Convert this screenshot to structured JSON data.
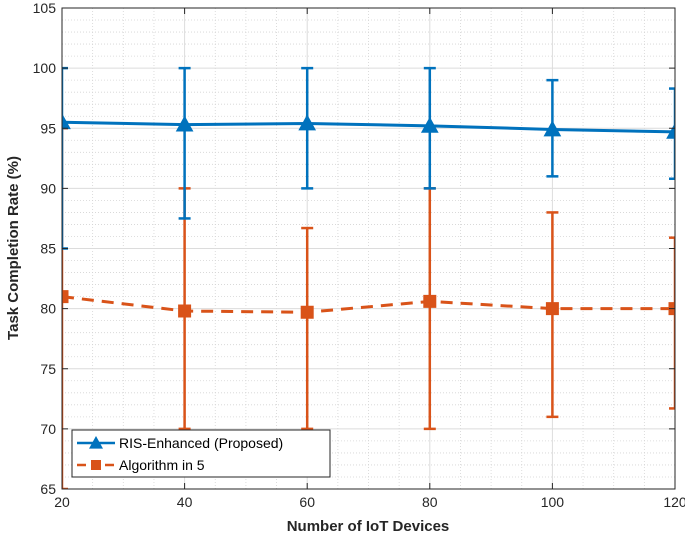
{
  "chart_data": {
    "type": "line",
    "title": "",
    "xlabel": "Number of IoT Devices",
    "ylabel": "Task Completion Rate (%)",
    "x": [
      20,
      40,
      60,
      80,
      100,
      120
    ],
    "xlim": [
      20,
      120
    ],
    "ylim": [
      65,
      105
    ],
    "xticks": [
      20,
      40,
      60,
      80,
      100,
      120
    ],
    "yticks": [
      65,
      70,
      75,
      80,
      85,
      90,
      95,
      100,
      105
    ],
    "grid": true,
    "minor_grid": true,
    "legend_position": "bottom-left",
    "series": [
      {
        "name": "RIS-Enhanced (Proposed)",
        "values": [
          95.5,
          95.3,
          95.4,
          95.2,
          94.9,
          94.7
        ],
        "err_low": [
          85,
          87.5,
          90,
          90,
          91,
          90.8
        ],
        "err_high": [
          100,
          100,
          100,
          100,
          99,
          98.3
        ],
        "color": "#0072BD",
        "marker": "triangle",
        "line_style": "solid"
      },
      {
        "name": "Algorithm in 5",
        "values": [
          81,
          79.8,
          79.7,
          80.6,
          80,
          80
        ],
        "err_low": [
          65,
          70,
          70,
          70,
          71,
          71.7
        ],
        "err_high": [
          95,
          90,
          86.7,
          90,
          88,
          85.9
        ],
        "color": "#D95319",
        "marker": "square",
        "line_style": "dashed"
      }
    ]
  }
}
